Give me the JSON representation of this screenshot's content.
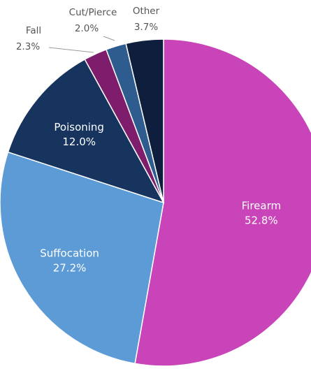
{
  "chart_data": {
    "type": "pie",
    "start_angle_deg": 0,
    "direction": "clockwise",
    "slices": [
      {
        "label": "Firearm",
        "value": 52.8,
        "value_label": "52.8%",
        "color": "#c944b8"
      },
      {
        "label": "Suffocation",
        "value": 27.2,
        "value_label": "27.2%",
        "color": "#5c9bd6"
      },
      {
        "label": "Poisoning",
        "value": 12.0,
        "value_label": "12.0%",
        "color": "#17345f"
      },
      {
        "label": "Fall",
        "value": 2.3,
        "value_label": "2.3%",
        "color": "#7d1d6c"
      },
      {
        "label": "Cut/Pierce",
        "value": 2.0,
        "value_label": "2.0%",
        "color": "#2e5c8f"
      },
      {
        "label": "Other",
        "value": 3.7,
        "value_label": "3.7%",
        "color": "#0e1e3c"
      }
    ]
  }
}
